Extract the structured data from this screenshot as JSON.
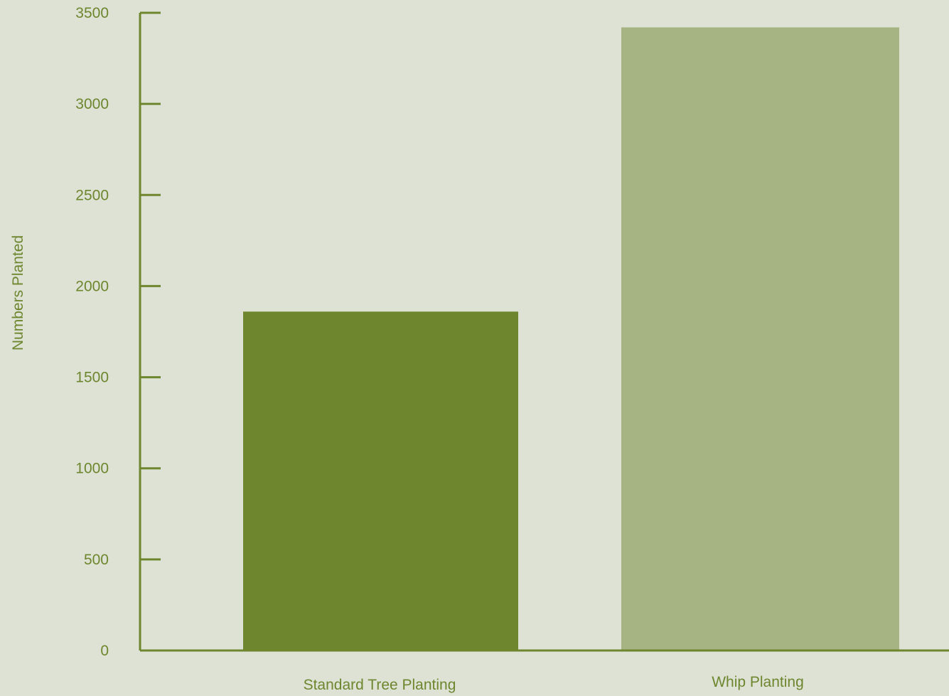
{
  "chart_data": {
    "type": "bar",
    "categories": [
      "Standard Tree Planting",
      "Whip Planting"
    ],
    "values": [
      1860,
      3420
    ],
    "ylabel": "Numbers Planted",
    "xlabel": "",
    "ylim": [
      0,
      3500
    ],
    "yticks": [
      0,
      500,
      1000,
      1500,
      2000,
      2500,
      3000,
      3500
    ],
    "ytick_labels": [
      "0",
      "500",
      "1000",
      "1500",
      "2000",
      "2500",
      "3000",
      "3500"
    ],
    "bar_colors": [
      "#6e862e",
      "#a6b483"
    ],
    "axis_color": "#6e862e",
    "background": "#dde2d5",
    "grid": false
  }
}
